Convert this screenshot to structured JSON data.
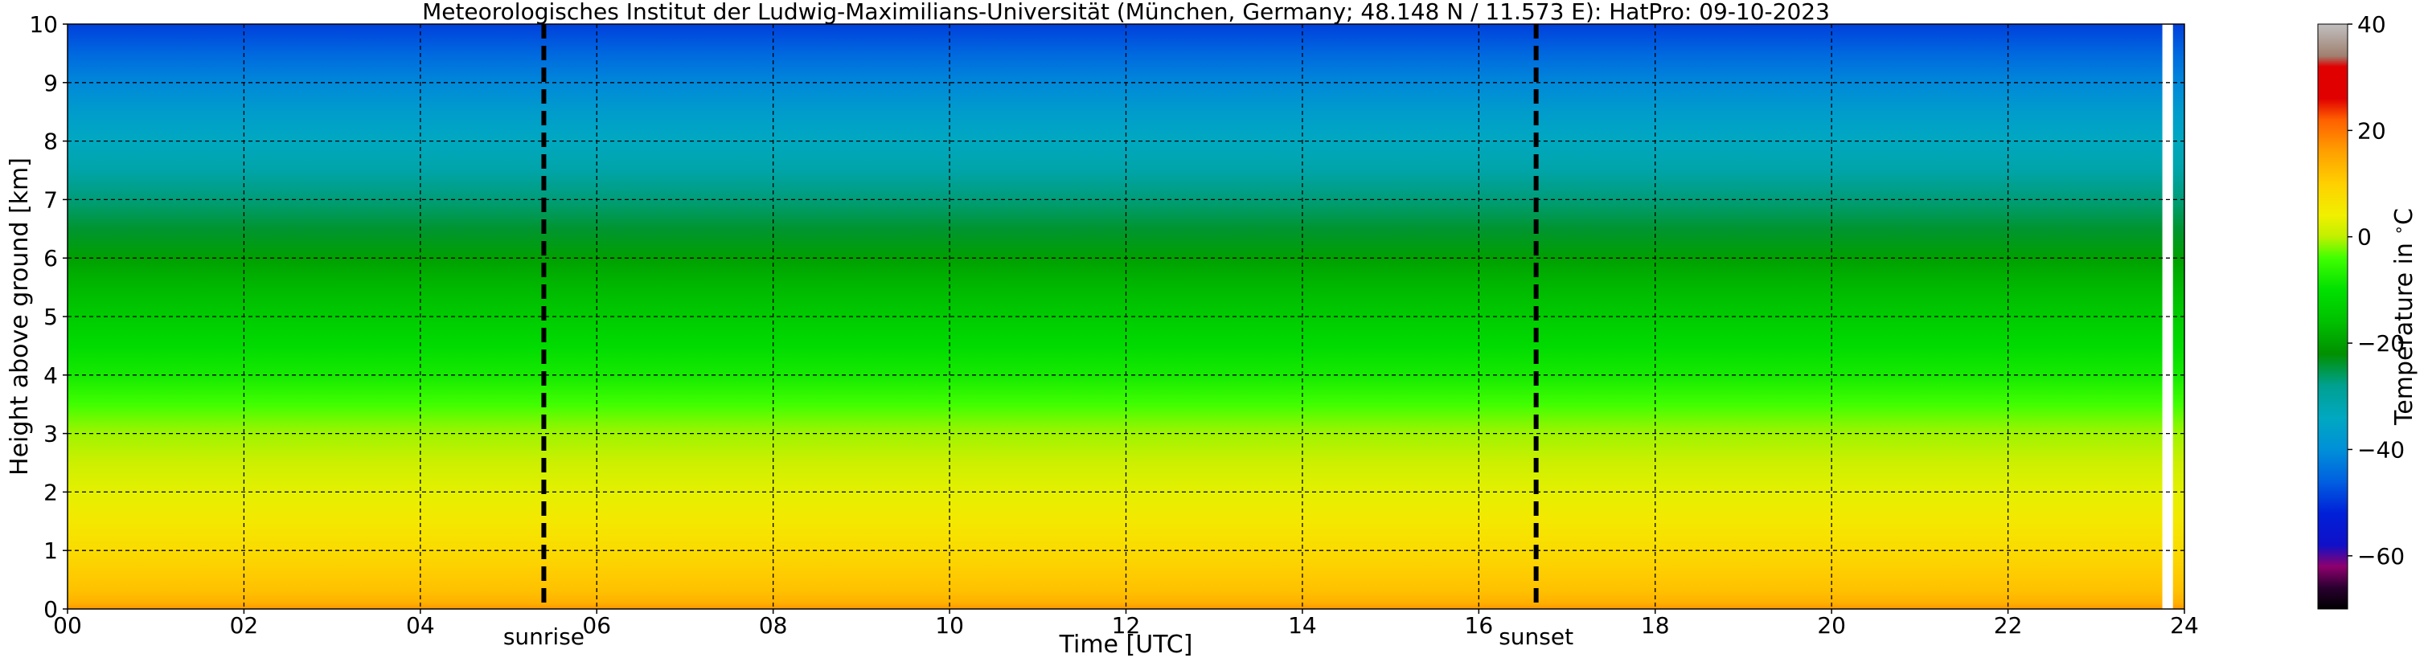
{
  "chart_data": {
    "type": "heatmap",
    "title": "Meteorologisches Institut der Ludwig-Maximilians-Universität (München, Germany; 48.148 N / 11.573 E):    HatPro: 09-10-2023",
    "xlabel": "Time [UTC]",
    "ylabel": "Height above ground [km]",
    "xlim": [
      0,
      24
    ],
    "ylim": [
      0,
      10
    ],
    "x_ticks": [
      "00",
      "02",
      "04",
      "06",
      "08",
      "10",
      "12",
      "14",
      "16",
      "18",
      "20",
      "22",
      "24"
    ],
    "y_ticks": [
      "0",
      "1",
      "2",
      "3",
      "4",
      "5",
      "6",
      "7",
      "8",
      "9",
      "10"
    ],
    "grid": true,
    "events": [
      {
        "label": "sunrise",
        "time": 5.4
      },
      {
        "label": "sunset",
        "time": 16.65
      }
    ],
    "data_end_time": 23.75,
    "temperature_profile": {
      "height_km": [
        0,
        0.1,
        0.3,
        0.5,
        1,
        1.5,
        2,
        2.5,
        3,
        3.5,
        4,
        4.5,
        5,
        5.5,
        6,
        6.5,
        7,
        7.5,
        8,
        8.5,
        9,
        9.5,
        10
      ],
      "temperature_c": [
        17,
        14,
        12,
        11,
        8,
        5.5,
        3,
        1,
        -1,
        -4,
        -8,
        -11,
        -14,
        -17,
        -20,
        -24,
        -27,
        -31,
        -34,
        -37,
        -41,
        -45,
        -49
      ]
    },
    "colorbar": {
      "label": "Temperature in $^\\circ$C",
      "min": -70,
      "max": 40,
      "ticks": [
        "−60",
        "−40",
        "−20",
        "0",
        "20",
        "40"
      ],
      "tick_values": [
        -60,
        -40,
        -20,
        0,
        20,
        40
      ],
      "stops": [
        {
          "value": -70,
          "color": "#000000"
        },
        {
          "value": -66,
          "color": "#2a0030"
        },
        {
          "value": -62,
          "color": "#8e006e"
        },
        {
          "value": -58,
          "color": "#1010c8"
        },
        {
          "value": -52,
          "color": "#0020d8"
        },
        {
          "value": -46,
          "color": "#0060e0"
        },
        {
          "value": -40,
          "color": "#0090d8"
        },
        {
          "value": -34,
          "color": "#00a8c0"
        },
        {
          "value": -28,
          "color": "#00a090"
        },
        {
          "value": -22,
          "color": "#009000"
        },
        {
          "value": -16,
          "color": "#00c000"
        },
        {
          "value": -10,
          "color": "#00e000"
        },
        {
          "value": -4,
          "color": "#40ff00"
        },
        {
          "value": 0,
          "color": "#c0f000"
        },
        {
          "value": 4,
          "color": "#f0f000"
        },
        {
          "value": 10,
          "color": "#ffd000"
        },
        {
          "value": 16,
          "color": "#ffa000"
        },
        {
          "value": 22,
          "color": "#ff6000"
        },
        {
          "value": 26,
          "color": "#e00000"
        },
        {
          "value": 32,
          "color": "#e00000"
        },
        {
          "value": 34,
          "color": "#a08070"
        },
        {
          "value": 40,
          "color": "#c0c0c0"
        }
      ]
    }
  }
}
